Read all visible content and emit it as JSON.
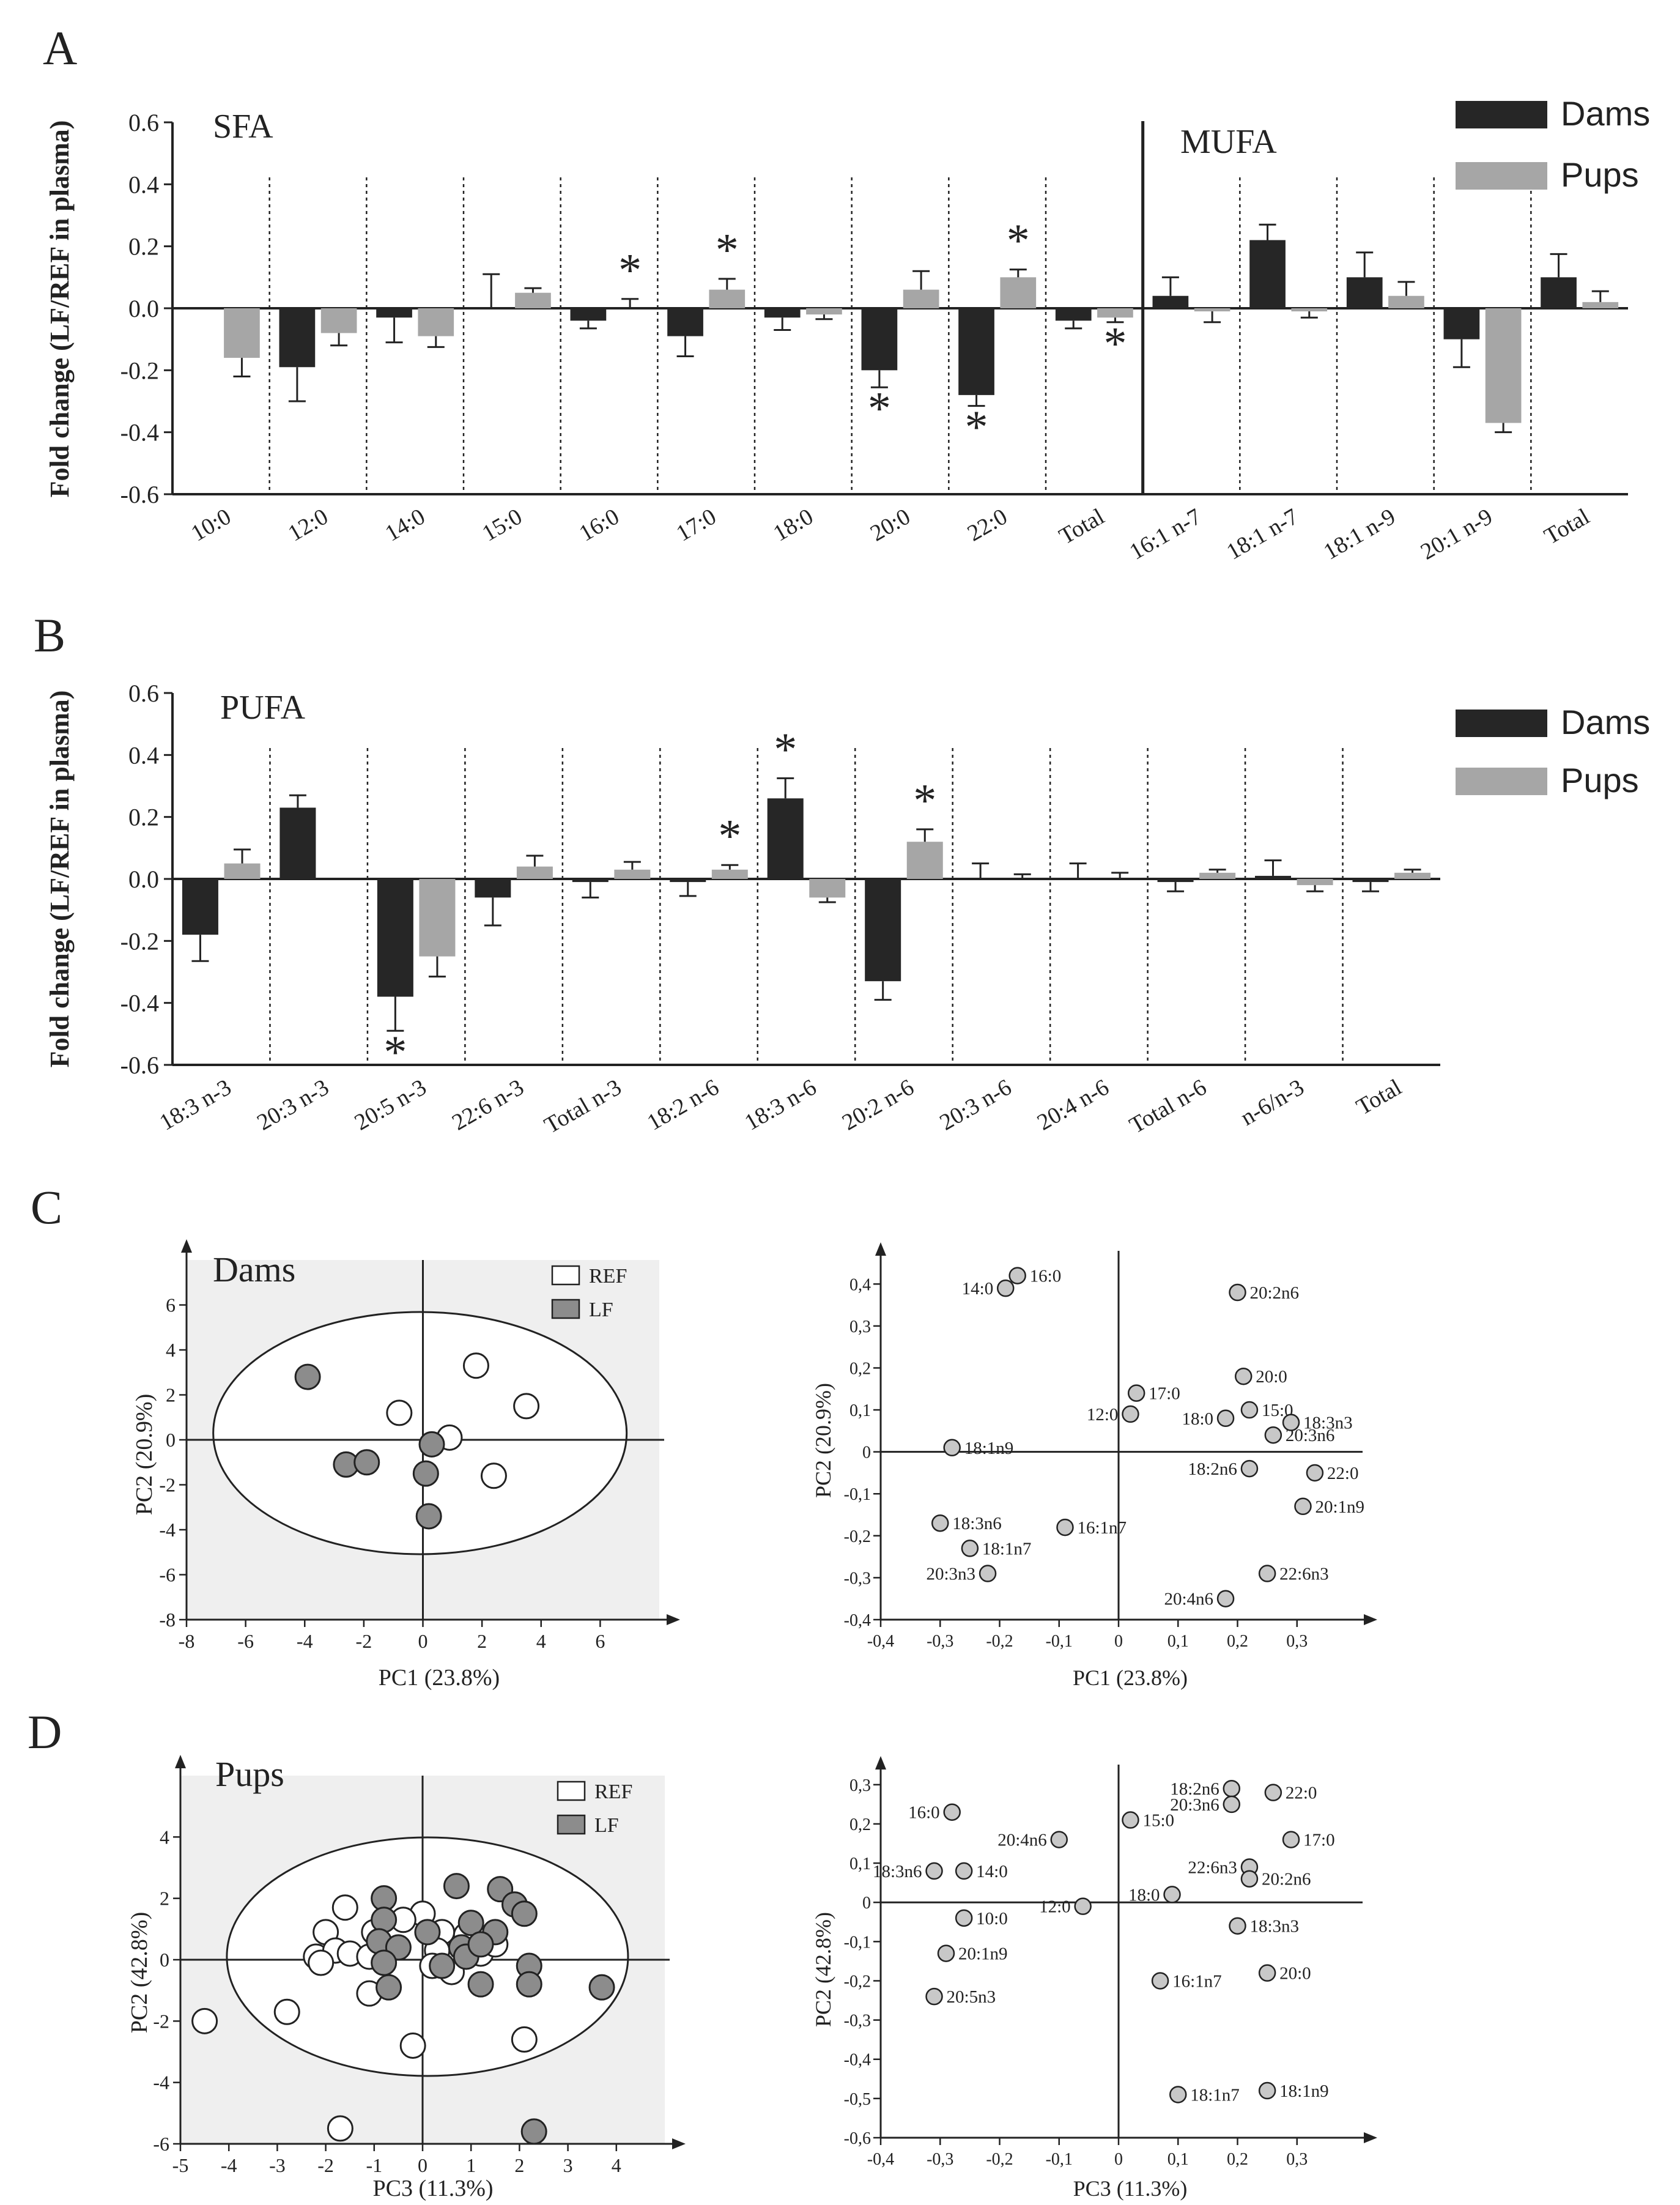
{
  "colors": {
    "dams": "#262626",
    "pups": "#a6a6a6",
    "ref": "#ffffff",
    "lf": "#8c8c8c",
    "var_point": "#c8c8c8",
    "pca_bg": "#efefef"
  },
  "panelA": {
    "letter": "A",
    "ylabel": "Fold change (LF/REF in plasma)",
    "section_labels": [
      "SFA",
      "MUFA"
    ],
    "legend": [
      "Dams",
      "Pups"
    ],
    "yticks": [
      "0.6",
      "0.4",
      "0.2",
      "0.0",
      "-0.2",
      "-0.4",
      "-0.6"
    ]
  },
  "panelB": {
    "letter": "B",
    "ylabel": "Fold change (LF/REF in plasma)",
    "section_labels": [
      "PUFA"
    ],
    "legend": [
      "Dams",
      "Pups"
    ],
    "yticks": [
      "0.6",
      "0.4",
      "0.2",
      "0.0",
      "-0.2",
      "-0.4",
      "-0.6"
    ]
  },
  "panelC": {
    "letter": "C",
    "score_title": "Dams",
    "score_xlabel": "PC1 (23.8%)",
    "score_ylabel": "PC2 (20.9%)",
    "score_legend": [
      "REF",
      "LF"
    ],
    "score_xticks": [
      "-8",
      "-6",
      "-4",
      "-2",
      "0",
      "2",
      "4",
      "6"
    ],
    "score_yticks": [
      "6",
      "4",
      "2",
      "0",
      "-2",
      "-4",
      "-6",
      "-8"
    ],
    "load_xlabel": "PC1 (23.8%)",
    "load_ylabel": "PC2 (20.9%)",
    "load_xticks": [
      "-0,4",
      "-0,3",
      "-0,2",
      "-0,1",
      "0",
      "0,1",
      "0,2",
      "0,3"
    ],
    "load_yticks": [
      "0,4",
      "0,3",
      "0,2",
      "0,1",
      "0",
      "-0,1",
      "-0,2",
      "-0,3",
      "-0,4"
    ]
  },
  "panelD": {
    "letter": "D",
    "score_title": "Pups",
    "score_xlabel": "PC3 (11.3%)",
    "score_ylabel": "PC2 (42.8%)",
    "score_legend": [
      "REF",
      "LF"
    ],
    "score_xticks": [
      "-5",
      "-4",
      "-3",
      "-2",
      "-1",
      "0",
      "1",
      "2",
      "3",
      "4"
    ],
    "score_yticks": [
      "4",
      "2",
      "0",
      "-2",
      "-4",
      "-6"
    ],
    "load_xlabel": "PC3 (11.3%)",
    "load_ylabel": "PC2 (42.8%)",
    "load_xticks": [
      "-0,4",
      "-0,3",
      "-0,2",
      "-0,1",
      "0",
      "0,1",
      "0,2",
      "0,3"
    ],
    "load_yticks": [
      "0,3",
      "0,2",
      "0,1",
      "0",
      "-0,1",
      "-0,2",
      "-0,3",
      "-0,4",
      "-0,5",
      "-0,6"
    ]
  },
  "chart_data": [
    {
      "panel": "A",
      "type": "bar",
      "ylabel": "Fold change (LF/REF in plasma)",
      "ylim": [
        -0.6,
        0.6
      ],
      "categories": [
        "10:0",
        "12:0",
        "14:0",
        "15:0",
        "16:0",
        "17:0",
        "18:0",
        "20:0",
        "22:0",
        "Total",
        "16:1 n-7",
        "18:1 n-7",
        "18:1 n-9",
        "20:1 n-9",
        "Total"
      ],
      "series": [
        {
          "name": "Dams",
          "values": [
            0.0,
            -0.19,
            -0.03,
            0.0,
            -0.04,
            -0.09,
            -0.03,
            -0.2,
            -0.28,
            -0.04,
            0.04,
            0.22,
            0.1,
            -0.1,
            0.1
          ],
          "errors": [
            0.0,
            0.11,
            0.08,
            0.11,
            0.025,
            0.065,
            0.04,
            0.055,
            0.035,
            0.025,
            0.06,
            0.05,
            0.08,
            0.09,
            0.075
          ]
        },
        {
          "name": "Pups",
          "values": [
            -0.16,
            -0.08,
            -0.09,
            0.05,
            0.0,
            0.06,
            -0.02,
            0.06,
            0.1,
            -0.03,
            -0.01,
            -0.01,
            0.04,
            -0.37,
            0.02
          ],
          "errors": [
            0.06,
            0.04,
            0.035,
            0.015,
            0.03,
            0.035,
            0.015,
            0.06,
            0.025,
            0.015,
            0.035,
            0.02,
            0.045,
            0.03,
            0.035
          ]
        }
      ],
      "significant": [
        {
          "category_index": 4,
          "series": "Pups"
        },
        {
          "category_index": 5,
          "series": "Pups"
        },
        {
          "category_index": 7,
          "series": "Dams"
        },
        {
          "category_index": 8,
          "series": "Dams"
        },
        {
          "category_index": 8,
          "series": "Pups"
        },
        {
          "category_index": 9,
          "series": "Pups"
        }
      ],
      "legend": "top-right"
    },
    {
      "panel": "B",
      "type": "bar",
      "ylabel": "Fold change (LF/REF in plasma)",
      "ylim": [
        -0.6,
        0.6
      ],
      "categories": [
        "18:3 n-3",
        "20:3 n-3",
        "20:5 n-3",
        "22:6 n-3",
        "Total n-3",
        "18:2 n-6",
        "18:3 n-6",
        "20:2 n-6",
        "20:3 n-6",
        "20:4 n-6",
        "Total n-6",
        "n-6/n-3",
        "Total"
      ],
      "series": [
        {
          "name": "Dams",
          "values": [
            -0.18,
            0.23,
            -0.38,
            -0.06,
            -0.01,
            -0.01,
            0.26,
            -0.33,
            0.0,
            0.0,
            -0.01,
            0.01,
            -0.01
          ],
          "errors": [
            0.085,
            0.04,
            0.11,
            0.09,
            0.05,
            0.045,
            0.065,
            0.06,
            0.05,
            0.05,
            0.03,
            0.05,
            0.03
          ]
        },
        {
          "name": "Pups",
          "values": [
            0.05,
            0.0,
            -0.25,
            0.04,
            0.03,
            0.03,
            -0.06,
            0.12,
            0.0,
            0.0,
            0.02,
            -0.02,
            0.02
          ],
          "errors": [
            0.045,
            0.0,
            0.065,
            0.035,
            0.025,
            0.015,
            0.015,
            0.04,
            0.015,
            0.02,
            0.01,
            0.02,
            0.01
          ]
        }
      ],
      "significant": [
        {
          "category_index": 2,
          "series": "Dams"
        },
        {
          "category_index": 5,
          "series": "Pups"
        },
        {
          "category_index": 6,
          "series": "Dams"
        },
        {
          "category_index": 7,
          "series": "Pups"
        }
      ],
      "legend": "top-right"
    },
    {
      "panel": "C-scores",
      "type": "scatter",
      "title": "Dams",
      "xlabel": "PC1 (23.8%)",
      "ylabel": "PC2 (20.9%)",
      "xlim": [
        -8,
        8
      ],
      "ylim": [
        -8,
        8
      ],
      "series": [
        {
          "name": "REF",
          "points": [
            [
              1.8,
              3.3
            ],
            [
              3.5,
              1.5
            ],
            [
              -0.8,
              1.2
            ],
            [
              0.9,
              0.1
            ],
            [
              2.4,
              -1.6
            ]
          ]
        },
        {
          "name": "LF",
          "points": [
            [
              -3.9,
              2.8
            ],
            [
              -2.6,
              -1.1
            ],
            [
              -1.9,
              -1.0
            ],
            [
              0.3,
              -0.2
            ],
            [
              0.1,
              -1.5
            ],
            [
              0.2,
              -3.4
            ]
          ]
        }
      ]
    },
    {
      "panel": "C-loadings",
      "type": "scatter",
      "xlabel": "PC1 (23.8%)",
      "ylabel": "PC2 (20.9%)",
      "xlim": [
        -0.4,
        0.4
      ],
      "ylim": [
        -0.4,
        0.45
      ],
      "points": [
        {
          "label": "14:0",
          "x": -0.19,
          "y": 0.39
        },
        {
          "label": "16:0",
          "x": -0.17,
          "y": 0.42
        },
        {
          "label": "20:2n6",
          "x": 0.2,
          "y": 0.38
        },
        {
          "label": "20:0",
          "x": 0.21,
          "y": 0.18
        },
        {
          "label": "17:0",
          "x": 0.03,
          "y": 0.14
        },
        {
          "label": "15:0",
          "x": 0.22,
          "y": 0.1
        },
        {
          "label": "12:0",
          "x": 0.02,
          "y": 0.09
        },
        {
          "label": "18:0",
          "x": 0.18,
          "y": 0.08
        },
        {
          "label": "20:3n6",
          "x": 0.26,
          "y": 0.04
        },
        {
          "label": "18:3n3",
          "x": 0.29,
          "y": 0.07
        },
        {
          "label": "18:1n9",
          "x": -0.28,
          "y": 0.01
        },
        {
          "label": "18:2n6",
          "x": 0.22,
          "y": -0.04
        },
        {
          "label": "22:0",
          "x": 0.33,
          "y": -0.05
        },
        {
          "label": "20:1n9",
          "x": 0.31,
          "y": -0.13
        },
        {
          "label": "18:3n6",
          "x": -0.3,
          "y": -0.17
        },
        {
          "label": "16:1n7",
          "x": -0.09,
          "y": -0.18
        },
        {
          "label": "18:1n7",
          "x": -0.25,
          "y": -0.23
        },
        {
          "label": "20:3n3",
          "x": -0.22,
          "y": -0.29
        },
        {
          "label": "22:6n3",
          "x": 0.25,
          "y": -0.29
        },
        {
          "label": "20:4n6",
          "x": 0.18,
          "y": -0.35
        }
      ]
    },
    {
      "panel": "D-scores",
      "type": "scatter",
      "title": "Pups",
      "xlabel": "PC3 (11.3%)",
      "ylabel": "PC2 (42.8%)",
      "xlim": [
        -5,
        5
      ],
      "ylim": [
        -6,
        6
      ],
      "series": [
        {
          "name": "REF",
          "points": [
            [
              -1.6,
              1.7
            ],
            [
              0.0,
              1.5
            ],
            [
              -2.0,
              0.9
            ],
            [
              -1.0,
              0.9
            ],
            [
              -0.4,
              1.3
            ],
            [
              0.4,
              0.9
            ],
            [
              0.9,
              0.8
            ],
            [
              0.3,
              0.3
            ],
            [
              -2.2,
              0.1
            ],
            [
              -1.8,
              0.3
            ],
            [
              -2.1,
              -0.1
            ],
            [
              -1.5,
              0.2
            ],
            [
              -1.1,
              0.1
            ],
            [
              0.2,
              -0.2
            ],
            [
              1.2,
              0.2
            ],
            [
              1.5,
              0.5
            ],
            [
              -2.8,
              -1.7
            ],
            [
              -1.1,
              -1.1
            ],
            [
              -0.2,
              -2.8
            ],
            [
              2.1,
              -2.6
            ],
            [
              -4.5,
              -2.0
            ],
            [
              -1.7,
              -5.5
            ],
            [
              0.6,
              -0.4
            ]
          ]
        },
        {
          "name": "LF",
          "points": [
            [
              -0.8,
              2.0
            ],
            [
              0.7,
              2.4
            ],
            [
              1.6,
              2.3
            ],
            [
              1.9,
              1.8
            ],
            [
              2.1,
              1.5
            ],
            [
              -0.8,
              1.3
            ],
            [
              1.0,
              1.2
            ],
            [
              1.5,
              0.9
            ],
            [
              0.1,
              0.9
            ],
            [
              -0.9,
              0.6
            ],
            [
              0.8,
              0.4
            ],
            [
              -0.5,
              0.4
            ],
            [
              0.9,
              0.1
            ],
            [
              -0.8,
              -0.1
            ],
            [
              0.4,
              -0.2
            ],
            [
              2.2,
              -0.2
            ],
            [
              1.2,
              -0.8
            ],
            [
              2.2,
              -0.8
            ],
            [
              -0.7,
              -0.9
            ],
            [
              3.7,
              -0.9
            ],
            [
              2.3,
              -5.6
            ],
            [
              1.2,
              0.5
            ]
          ]
        }
      ]
    },
    {
      "panel": "D-loadings",
      "type": "scatter",
      "xlabel": "PC3 (11.3%)",
      "ylabel": "PC2 (42.8%)",
      "xlim": [
        -0.4,
        0.4
      ],
      "ylim": [
        -0.6,
        0.32
      ],
      "points": [
        {
          "label": "16:0",
          "x": -0.28,
          "y": 0.23
        },
        {
          "label": "18:2n6",
          "x": 0.19,
          "y": 0.29
        },
        {
          "label": "22:0",
          "x": 0.26,
          "y": 0.28
        },
        {
          "label": "20:3n6",
          "x": 0.19,
          "y": 0.25
        },
        {
          "label": "15:0",
          "x": 0.02,
          "y": 0.21
        },
        {
          "label": "17:0",
          "x": 0.29,
          "y": 0.16
        },
        {
          "label": "20:4n6",
          "x": -0.1,
          "y": 0.16
        },
        {
          "label": "18:3n6",
          "x": -0.31,
          "y": 0.08
        },
        {
          "label": "14:0",
          "x": -0.26,
          "y": 0.08
        },
        {
          "label": "22:6n3",
          "x": 0.22,
          "y": 0.09
        },
        {
          "label": "20:2n6",
          "x": 0.22,
          "y": 0.06
        },
        {
          "label": "18:0",
          "x": 0.09,
          "y": 0.02
        },
        {
          "label": "12:0",
          "x": -0.06,
          "y": -0.01
        },
        {
          "label": "10:0",
          "x": -0.26,
          "y": -0.04
        },
        {
          "label": "18:3n3",
          "x": 0.2,
          "y": -0.06
        },
        {
          "label": "20:1n9",
          "x": -0.29,
          "y": -0.13
        },
        {
          "label": "20:0",
          "x": 0.25,
          "y": -0.18
        },
        {
          "label": "16:1n7",
          "x": 0.07,
          "y": -0.2
        },
        {
          "label": "20:5n3",
          "x": -0.31,
          "y": -0.24
        },
        {
          "label": "18:1n7",
          "x": 0.1,
          "y": -0.49
        },
        {
          "label": "18:1n9",
          "x": 0.25,
          "y": -0.48
        }
      ]
    }
  ]
}
